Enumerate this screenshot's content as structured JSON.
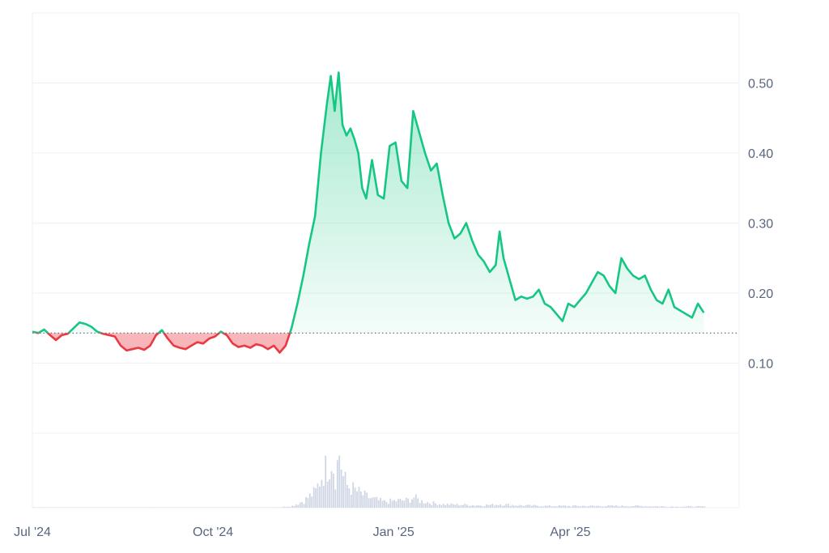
{
  "chart_data": {
    "type": "line",
    "title": "",
    "xlabel": "",
    "ylabel": "",
    "x_range": [
      "2024-07-01",
      "2025-06-26"
    ],
    "ylim": [
      0,
      0.6
    ],
    "y_ticks": [
      0.1,
      0.2,
      0.3,
      0.4,
      0.5
    ],
    "y_tick_labels": [
      "0.10",
      "0.20",
      "0.30",
      "0.40",
      "0.50"
    ],
    "x_ticks": [
      {
        "date": "2024-07-01",
        "label": "Jul '24"
      },
      {
        "date": "2024-10-01",
        "label": "Oct '24"
      },
      {
        "date": "2025-01-01",
        "label": "Jan '25"
      },
      {
        "date": "2025-04-01",
        "label": "Apr '25"
      }
    ],
    "baseline": 0.143,
    "grid": true,
    "colors": {
      "above": "#16c784",
      "below": "#ea3943",
      "volume": "#cfd6e4",
      "grid": "#eff2f5",
      "baseline": "#58667e"
    },
    "series": [
      {
        "values": [
          [
            "2024-07-01",
            0.145
          ],
          [
            "2024-07-04",
            0.143
          ],
          [
            "2024-07-07",
            0.148
          ],
          [
            "2024-07-10",
            0.14
          ],
          [
            "2024-07-13",
            0.133
          ],
          [
            "2024-07-16",
            0.14
          ],
          [
            "2024-07-19",
            0.142
          ],
          [
            "2024-07-22",
            0.15
          ],
          [
            "2024-07-25",
            0.158
          ],
          [
            "2024-07-28",
            0.156
          ],
          [
            "2024-07-31",
            0.152
          ],
          [
            "2024-08-03",
            0.145
          ],
          [
            "2024-08-06",
            0.142
          ],
          [
            "2024-08-09",
            0.14
          ],
          [
            "2024-08-12",
            0.138
          ],
          [
            "2024-08-15",
            0.125
          ],
          [
            "2024-08-18",
            0.118
          ],
          [
            "2024-08-21",
            0.12
          ],
          [
            "2024-08-24",
            0.122
          ],
          [
            "2024-08-27",
            0.119
          ],
          [
            "2024-08-30",
            0.125
          ],
          [
            "2024-09-02",
            0.14
          ],
          [
            "2024-09-05",
            0.147
          ],
          [
            "2024-09-08",
            0.135
          ],
          [
            "2024-09-11",
            0.125
          ],
          [
            "2024-09-14",
            0.122
          ],
          [
            "2024-09-17",
            0.12
          ],
          [
            "2024-09-20",
            0.125
          ],
          [
            "2024-09-23",
            0.13
          ],
          [
            "2024-09-26",
            0.128
          ],
          [
            "2024-09-29",
            0.135
          ],
          [
            "2024-10-02",
            0.138
          ],
          [
            "2024-10-05",
            0.145
          ],
          [
            "2024-10-08",
            0.14
          ],
          [
            "2024-10-11",
            0.128
          ],
          [
            "2024-10-14",
            0.123
          ],
          [
            "2024-10-17",
            0.125
          ],
          [
            "2024-10-20",
            0.122
          ],
          [
            "2024-10-23",
            0.127
          ],
          [
            "2024-10-26",
            0.125
          ],
          [
            "2024-10-29",
            0.12
          ],
          [
            "2024-11-01",
            0.125
          ],
          [
            "2024-11-04",
            0.115
          ],
          [
            "2024-11-07",
            0.125
          ],
          [
            "2024-11-10",
            0.15
          ],
          [
            "2024-11-13",
            0.185
          ],
          [
            "2024-11-16",
            0.225
          ],
          [
            "2024-11-19",
            0.27
          ],
          [
            "2024-11-22",
            0.31
          ],
          [
            "2024-11-25",
            0.4
          ],
          [
            "2024-11-28",
            0.47
          ],
          [
            "2024-11-30",
            0.51
          ],
          [
            "2024-12-02",
            0.46
          ],
          [
            "2024-12-04",
            0.515
          ],
          [
            "2024-12-06",
            0.44
          ],
          [
            "2024-12-08",
            0.425
          ],
          [
            "2024-12-10",
            0.435
          ],
          [
            "2024-12-12",
            0.42
          ],
          [
            "2024-12-14",
            0.4
          ],
          [
            "2024-12-16",
            0.35
          ],
          [
            "2024-12-18",
            0.335
          ],
          [
            "2024-12-21",
            0.39
          ],
          [
            "2024-12-24",
            0.34
          ],
          [
            "2024-12-27",
            0.335
          ],
          [
            "2024-12-30",
            0.41
          ],
          [
            "2025-01-02",
            0.415
          ],
          [
            "2025-01-05",
            0.36
          ],
          [
            "2025-01-08",
            0.35
          ],
          [
            "2025-01-11",
            0.46
          ],
          [
            "2025-01-14",
            0.43
          ],
          [
            "2025-01-17",
            0.4
          ],
          [
            "2025-01-20",
            0.375
          ],
          [
            "2025-01-23",
            0.385
          ],
          [
            "2025-01-26",
            0.34
          ],
          [
            "2025-01-29",
            0.3
          ],
          [
            "2025-02-01",
            0.278
          ],
          [
            "2025-02-04",
            0.285
          ],
          [
            "2025-02-07",
            0.3
          ],
          [
            "2025-02-10",
            0.275
          ],
          [
            "2025-02-13",
            0.255
          ],
          [
            "2025-02-16",
            0.245
          ],
          [
            "2025-02-19",
            0.23
          ],
          [
            "2025-02-22",
            0.24
          ],
          [
            "2025-02-24",
            0.288
          ],
          [
            "2025-02-26",
            0.25
          ],
          [
            "2025-03-01",
            0.22
          ],
          [
            "2025-03-04",
            0.19
          ],
          [
            "2025-03-07",
            0.195
          ],
          [
            "2025-03-10",
            0.192
          ],
          [
            "2025-03-13",
            0.195
          ],
          [
            "2025-03-16",
            0.205
          ],
          [
            "2025-03-19",
            0.185
          ],
          [
            "2025-03-22",
            0.18
          ],
          [
            "2025-03-25",
            0.17
          ],
          [
            "2025-03-28",
            0.16
          ],
          [
            "2025-03-31",
            0.185
          ],
          [
            "2025-04-03",
            0.18
          ],
          [
            "2025-04-06",
            0.19
          ],
          [
            "2025-04-09",
            0.2
          ],
          [
            "2025-04-12",
            0.215
          ],
          [
            "2025-04-15",
            0.23
          ],
          [
            "2025-04-18",
            0.225
          ],
          [
            "2025-04-21",
            0.21
          ],
          [
            "2025-04-24",
            0.2
          ],
          [
            "2025-04-27",
            0.25
          ],
          [
            "2025-04-30",
            0.235
          ],
          [
            "2025-05-03",
            0.225
          ],
          [
            "2025-05-06",
            0.22
          ],
          [
            "2025-05-09",
            0.225
          ],
          [
            "2025-05-12",
            0.205
          ],
          [
            "2025-05-15",
            0.19
          ],
          [
            "2025-05-18",
            0.185
          ],
          [
            "2025-05-21",
            0.205
          ],
          [
            "2025-05-24",
            0.18
          ],
          [
            "2025-05-27",
            0.175
          ],
          [
            "2025-05-30",
            0.17
          ],
          [
            "2025-06-02",
            0.165
          ],
          [
            "2025-06-05",
            0.185
          ],
          [
            "2025-06-08",
            0.172
          ]
        ]
      }
    ],
    "volume": {
      "values": [
        [
          "2024-07-01",
          0.0
        ],
        [
          "2024-08-01",
          0.0
        ],
        [
          "2024-09-01",
          0.0
        ],
        [
          "2024-10-01",
          0.0
        ],
        [
          "2024-11-01",
          0.0
        ],
        [
          "2024-11-10",
          0.03
        ],
        [
          "2024-11-16",
          0.12
        ],
        [
          "2024-11-22",
          0.28
        ],
        [
          "2024-11-25",
          0.55
        ],
        [
          "2024-11-28",
          0.72
        ],
        [
          "2024-11-30",
          0.88
        ],
        [
          "2024-12-02",
          0.55
        ],
        [
          "2024-12-04",
          0.95
        ],
        [
          "2024-12-06",
          0.52
        ],
        [
          "2024-12-08",
          0.38
        ],
        [
          "2024-12-12",
          0.3
        ],
        [
          "2024-12-16",
          0.22
        ],
        [
          "2024-12-21",
          0.15
        ],
        [
          "2024-12-27",
          0.1
        ],
        [
          "2025-01-02",
          0.12
        ],
        [
          "2025-01-08",
          0.13
        ],
        [
          "2025-01-11",
          0.18
        ],
        [
          "2025-01-14",
          0.12
        ],
        [
          "2025-01-20",
          0.08
        ],
        [
          "2025-01-26",
          0.06
        ],
        [
          "2025-02-05",
          0.05
        ],
        [
          "2025-02-15",
          0.04
        ],
        [
          "2025-02-24",
          0.06
        ],
        [
          "2025-03-05",
          0.04
        ],
        [
          "2025-03-20",
          0.03
        ],
        [
          "2025-04-05",
          0.03
        ],
        [
          "2025-04-20",
          0.03
        ],
        [
          "2025-05-05",
          0.03
        ],
        [
          "2025-05-20",
          0.02
        ],
        [
          "2025-06-08",
          0.02
        ]
      ]
    }
  }
}
